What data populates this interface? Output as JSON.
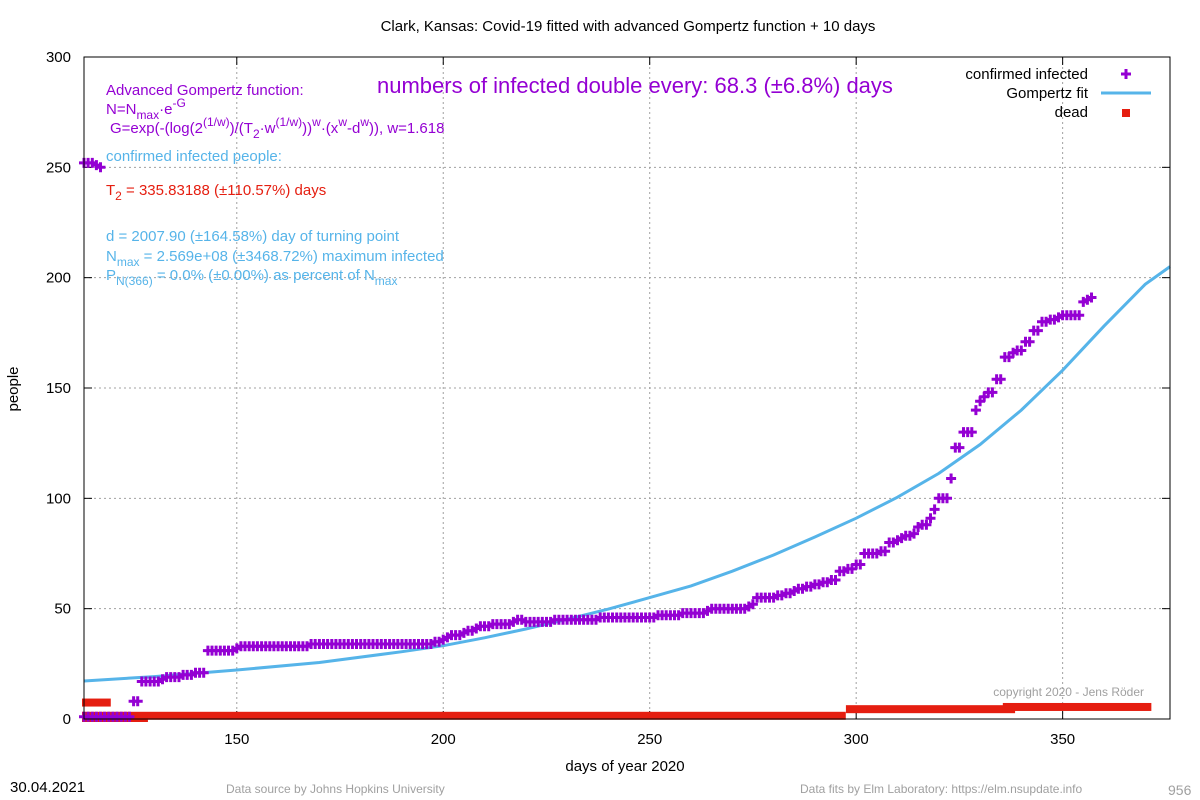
{
  "chart_data": {
    "type": "scatter",
    "title": "Clark,  Kansas: Covid-19 fitted with advanced Gompertz function + 10 days",
    "xlabel": "days of year 2020",
    "ylabel": "people",
    "xlim": [
      113,
      376
    ],
    "ylim": [
      0,
      300
    ],
    "x_ticks": [
      150,
      200,
      250,
      300,
      350
    ],
    "y_ticks": [
      0,
      50,
      100,
      150,
      200,
      250,
      300
    ],
    "grid": true,
    "legend_position": "top-right",
    "legend": {
      "confirmed": "confirmed infected",
      "fit": "Gompertz fit",
      "dead": "dead"
    },
    "colors": {
      "confirmed": "#9400d3",
      "fit": "#56b4e9",
      "dead": "#e51e10",
      "red_text": "#e51e10",
      "copyright": "#a0a0a0"
    },
    "annotations": {
      "doubling": "numbers of infected double every: 68.3 (±6.8%) days",
      "formula_title": "Advanced Gompertz function:",
      "formula_n_a": "N=N",
      "formula_n_sub": "max",
      "formula_n_b": "·e",
      "formula_n_sup": "-G",
      "formula_g_a": "G=exp(-(log(2",
      "formula_g_sup1": "(1/w)",
      "formula_g_b": ")/(T",
      "formula_g_sub1": "2",
      "formula_g_c": "·w",
      "formula_g_sup2": "(1/w)",
      "formula_g_d": "))",
      "formula_g_sup3": "w",
      "formula_g_e": "·(x",
      "formula_g_sup4": "w",
      "formula_g_f": "-d",
      "formula_g_sup5": "w",
      "formula_g_g": ")), w=1.618",
      "confirmed_label": "confirmed infected people:",
      "t2_a": "T",
      "t2_sub": "2",
      "t2_b": " = 335.83188 (±110.57%) days",
      "d_line": "d = 2007.90 (±164.58%) day of turning point",
      "nmax_a": "N",
      "nmax_sub": "max",
      "nmax_b": " = 2.569e+08 (±3468.72%) maximum infected",
      "p_a": "P",
      "p_sub": "N(366)",
      "p_b": " = 0.0% (±0.00%) as percent of N",
      "p_sub2": "max",
      "copyright": "copyright 2020 - Jens Röder"
    },
    "series": [
      {
        "name": "confirmed infected",
        "points": [
          [
            113,
            252
          ],
          [
            114,
            252
          ],
          [
            115,
            252
          ],
          [
            116,
            251
          ],
          [
            117,
            250
          ],
          [
            113,
            1
          ],
          [
            114,
            1
          ],
          [
            115,
            1
          ],
          [
            116,
            1
          ],
          [
            117,
            1
          ],
          [
            118,
            1
          ],
          [
            119,
            1
          ],
          [
            120,
            1
          ],
          [
            121,
            1
          ],
          [
            122,
            1
          ],
          [
            123,
            1
          ],
          [
            124,
            1
          ],
          [
            125,
            8
          ],
          [
            126,
            8
          ],
          [
            127,
            17
          ],
          [
            128,
            17
          ],
          [
            129,
            17
          ],
          [
            130,
            17
          ],
          [
            131,
            17
          ],
          [
            132,
            18
          ],
          [
            133,
            19
          ],
          [
            134,
            19
          ],
          [
            135,
            19
          ],
          [
            136,
            19
          ],
          [
            137,
            20
          ],
          [
            138,
            20
          ],
          [
            139,
            20
          ],
          [
            140,
            21
          ],
          [
            141,
            21
          ],
          [
            142,
            21
          ],
          [
            143,
            31
          ],
          [
            144,
            31
          ],
          [
            145,
            31
          ],
          [
            146,
            31
          ],
          [
            147,
            31
          ],
          [
            148,
            31
          ],
          [
            149,
            31
          ],
          [
            150,
            32
          ],
          [
            151,
            33
          ],
          [
            152,
            33
          ],
          [
            153,
            33
          ],
          [
            154,
            33
          ],
          [
            155,
            33
          ],
          [
            156,
            33
          ],
          [
            157,
            33
          ],
          [
            158,
            33
          ],
          [
            159,
            33
          ],
          [
            160,
            33
          ],
          [
            161,
            33
          ],
          [
            162,
            33
          ],
          [
            163,
            33
          ],
          [
            164,
            33
          ],
          [
            165,
            33
          ],
          [
            166,
            33
          ],
          [
            167,
            33
          ],
          [
            168,
            34
          ],
          [
            169,
            34
          ],
          [
            170,
            34
          ],
          [
            171,
            34
          ],
          [
            172,
            34
          ],
          [
            173,
            34
          ],
          [
            174,
            34
          ],
          [
            175,
            34
          ],
          [
            176,
            34
          ],
          [
            177,
            34
          ],
          [
            178,
            34
          ],
          [
            179,
            34
          ],
          [
            180,
            34
          ],
          [
            181,
            34
          ],
          [
            182,
            34
          ],
          [
            183,
            34
          ],
          [
            184,
            34
          ],
          [
            185,
            34
          ],
          [
            186,
            34
          ],
          [
            187,
            34
          ],
          [
            188,
            34
          ],
          [
            189,
            34
          ],
          [
            190,
            34
          ],
          [
            191,
            34
          ],
          [
            192,
            34
          ],
          [
            193,
            34
          ],
          [
            194,
            34
          ],
          [
            195,
            34
          ],
          [
            196,
            34
          ],
          [
            197,
            34
          ],
          [
            198,
            35
          ],
          [
            199,
            35
          ],
          [
            200,
            36
          ],
          [
            201,
            37
          ],
          [
            202,
            38
          ],
          [
            203,
            38
          ],
          [
            204,
            38
          ],
          [
            205,
            39
          ],
          [
            206,
            40
          ],
          [
            207,
            40
          ],
          [
            208,
            41
          ],
          [
            209,
            42
          ],
          [
            210,
            42
          ],
          [
            211,
            42
          ],
          [
            212,
            43
          ],
          [
            213,
            43
          ],
          [
            214,
            43
          ],
          [
            215,
            43
          ],
          [
            216,
            43
          ],
          [
            217,
            44
          ],
          [
            218,
            45
          ],
          [
            219,
            45
          ],
          [
            220,
            44
          ],
          [
            221,
            44
          ],
          [
            222,
            44
          ],
          [
            223,
            44
          ],
          [
            224,
            44
          ],
          [
            225,
            44
          ],
          [
            226,
            44
          ],
          [
            227,
            45
          ],
          [
            228,
            45
          ],
          [
            229,
            45
          ],
          [
            230,
            45
          ],
          [
            231,
            45
          ],
          [
            232,
            45
          ],
          [
            233,
            45
          ],
          [
            234,
            45
          ],
          [
            235,
            45
          ],
          [
            236,
            45
          ],
          [
            237,
            45
          ],
          [
            238,
            46
          ],
          [
            239,
            46
          ],
          [
            240,
            46
          ],
          [
            241,
            46
          ],
          [
            242,
            46
          ],
          [
            243,
            46
          ],
          [
            244,
            46
          ],
          [
            245,
            46
          ],
          [
            246,
            46
          ],
          [
            247,
            46
          ],
          [
            248,
            46
          ],
          [
            249,
            46
          ],
          [
            250,
            46
          ],
          [
            251,
            46
          ],
          [
            252,
            47
          ],
          [
            253,
            47
          ],
          [
            254,
            47
          ],
          [
            255,
            47
          ],
          [
            256,
            47
          ],
          [
            257,
            47
          ],
          [
            258,
            48
          ],
          [
            259,
            48
          ],
          [
            260,
            48
          ],
          [
            261,
            48
          ],
          [
            262,
            48
          ],
          [
            263,
            48
          ],
          [
            264,
            49
          ],
          [
            265,
            50
          ],
          [
            266,
            50
          ],
          [
            267,
            50
          ],
          [
            268,
            50
          ],
          [
            269,
            50
          ],
          [
            270,
            50
          ],
          [
            271,
            50
          ],
          [
            272,
            50
          ],
          [
            273,
            50
          ],
          [
            274,
            51
          ],
          [
            275,
            52
          ],
          [
            276,
            55
          ],
          [
            277,
            55
          ],
          [
            278,
            55
          ],
          [
            279,
            55
          ],
          [
            280,
            55
          ],
          [
            281,
            56
          ],
          [
            282,
            56
          ],
          [
            283,
            57
          ],
          [
            284,
            57
          ],
          [
            285,
            58
          ],
          [
            286,
            59
          ],
          [
            287,
            59
          ],
          [
            288,
            60
          ],
          [
            289,
            60
          ],
          [
            290,
            61
          ],
          [
            291,
            61
          ],
          [
            292,
            62
          ],
          [
            293,
            62
          ],
          [
            294,
            63
          ],
          [
            295,
            63
          ],
          [
            296,
            67
          ],
          [
            297,
            67
          ],
          [
            298,
            68
          ],
          [
            299,
            68
          ],
          [
            300,
            70
          ],
          [
            301,
            70
          ],
          [
            302,
            75
          ],
          [
            303,
            75
          ],
          [
            304,
            75
          ],
          [
            305,
            75
          ],
          [
            306,
            76
          ],
          [
            307,
            76
          ],
          [
            308,
            80
          ],
          [
            309,
            80
          ],
          [
            310,
            81
          ],
          [
            311,
            82
          ],
          [
            312,
            83
          ],
          [
            313,
            83
          ],
          [
            314,
            84
          ],
          [
            315,
            87
          ],
          [
            316,
            88
          ],
          [
            317,
            88
          ],
          [
            318,
            91
          ],
          [
            319,
            95
          ],
          [
            320,
            100
          ],
          [
            321,
            100
          ],
          [
            322,
            100
          ],
          [
            323,
            109
          ],
          [
            324,
            123
          ],
          [
            325,
            123
          ],
          [
            326,
            130
          ],
          [
            327,
            130
          ],
          [
            328,
            130
          ],
          [
            329,
            140
          ],
          [
            330,
            144
          ],
          [
            331,
            146
          ],
          [
            332,
            148
          ],
          [
            333,
            148
          ],
          [
            334,
            154
          ],
          [
            335,
            154
          ],
          [
            336,
            164
          ],
          [
            337,
            164
          ],
          [
            338,
            166
          ],
          [
            339,
            167
          ],
          [
            340,
            167
          ],
          [
            341,
            171
          ],
          [
            342,
            171
          ],
          [
            343,
            176
          ],
          [
            344,
            176
          ],
          [
            345,
            180
          ],
          [
            346,
            180
          ],
          [
            347,
            181
          ],
          [
            348,
            181
          ],
          [
            349,
            182
          ],
          [
            350,
            183
          ],
          [
            351,
            183
          ],
          [
            352,
            183
          ],
          [
            353,
            183
          ],
          [
            354,
            183
          ],
          [
            355,
            189
          ],
          [
            356,
            190
          ],
          [
            357,
            191
          ]
        ]
      },
      {
        "name": "Gompertz fit",
        "points": [
          [
            113,
            17.2
          ],
          [
            130,
            19.2
          ],
          [
            150,
            22.2
          ],
          [
            170,
            25.6
          ],
          [
            190,
            30.5
          ],
          [
            200,
            33.2
          ],
          [
            210,
            36.8
          ],
          [
            220,
            40.8
          ],
          [
            230,
            45.2
          ],
          [
            240,
            49.8
          ],
          [
            250,
            55
          ],
          [
            260,
            60.3
          ],
          [
            270,
            67
          ],
          [
            280,
            74.3
          ],
          [
            290,
            82.5
          ],
          [
            300,
            91
          ],
          [
            310,
            100.5
          ],
          [
            320,
            111.3
          ],
          [
            330,
            124.4
          ],
          [
            340,
            140
          ],
          [
            350,
            158
          ],
          [
            360,
            178
          ],
          [
            370,
            197
          ],
          [
            376,
            205
          ]
        ]
      },
      {
        "name": "dead",
        "segments": [
          [
            113,
            119,
            7
          ],
          [
            113,
            128,
            0
          ],
          [
            113,
            297,
            1
          ],
          [
            298,
            338,
            4
          ],
          [
            336,
            371,
            5
          ]
        ]
      }
    ]
  },
  "footer": {
    "date": "30.04.2021",
    "source": "Data source by Johns Hopkins University",
    "fits": "Data fits by Elm Laboratory: https://elm.nsupdate.info",
    "page_number": "956"
  }
}
